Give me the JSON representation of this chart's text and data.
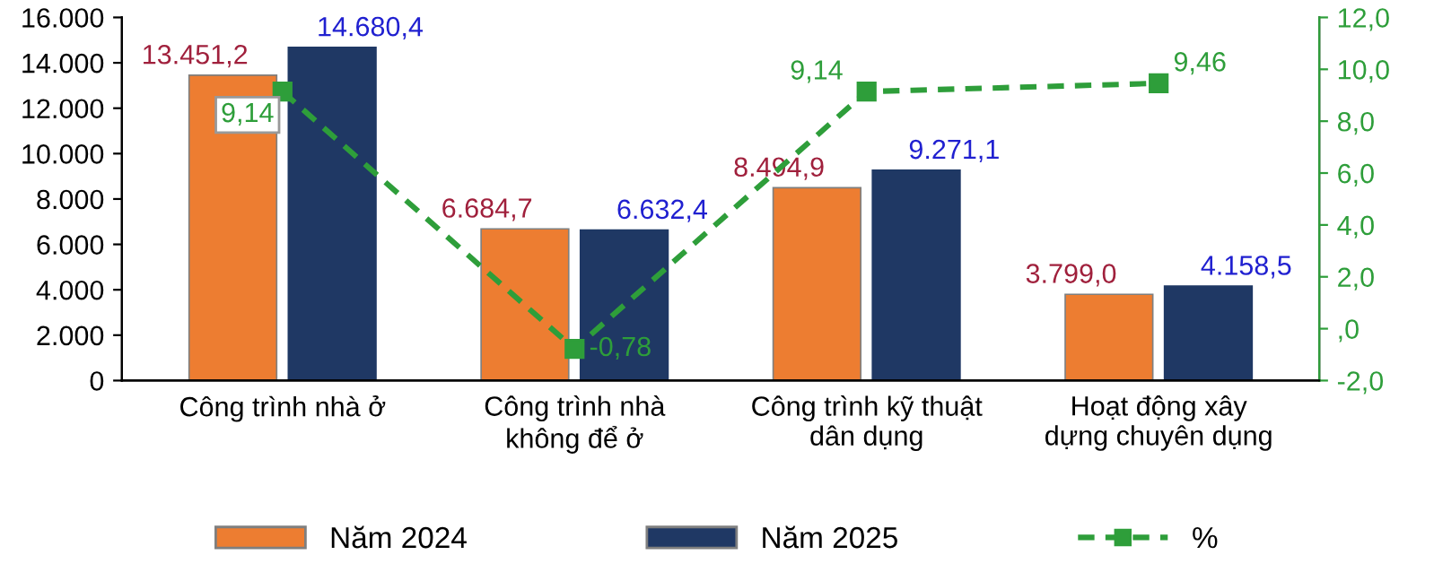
{
  "chart_data": {
    "type": "bar",
    "categories": [
      "Công trình nhà ở",
      "Công trình nhà\nkhông để ở",
      "Công trình kỹ thuật\ndân dụng",
      "Hoạt động xây\ndựng chuyên dụng"
    ],
    "series": [
      {
        "name": "Năm 2024",
        "color": "#ed7d31",
        "values": [
          13451.2,
          6684.7,
          8494.9,
          3799.0
        ],
        "value_labels": [
          "13.451,2",
          "6.684,7",
          "8.494,9",
          "3.799,0"
        ]
      },
      {
        "name": "Năm 2025",
        "color": "#1f3864",
        "values": [
          14680.4,
          6632.4,
          9271.1,
          4158.5
        ],
        "value_labels": [
          "14.680,4",
          "6.632,4",
          "9.271,1",
          "4.158,5"
        ]
      },
      {
        "name": "%",
        "type": "line",
        "axis": "y2",
        "color": "#2e9e3a",
        "marker": "square",
        "line_style": "dashed",
        "values": [
          9.14,
          -0.78,
          9.14,
          9.46
        ],
        "value_labels": [
          "9,14",
          "-0,78",
          "9,14",
          "9,46"
        ]
      }
    ],
    "ylim": [
      0,
      16000
    ],
    "yticks": [
      0,
      {
        "value": 2000,
        "label": "2.000"
      },
      {
        "value": 4000,
        "label": "4.000"
      },
      {
        "value": 6000,
        "label": "6.000"
      },
      {
        "value": 8000,
        "label": "8.000"
      },
      {
        "value": 10000,
        "label": "10.000"
      },
      {
        "value": 12000,
        "label": "12.000"
      },
      {
        "value": 14000,
        "label": "14.000"
      },
      {
        "value": 16000,
        "label": "16.000"
      }
    ],
    "y2lim": [
      -2,
      12
    ],
    "y2ticks": [
      {
        "value": -2,
        "label": "-2,0"
      },
      {
        "value": 0,
        "label": ",0"
      },
      {
        "value": 2,
        "label": "2,0"
      },
      {
        "value": 4,
        "label": "4,0"
      },
      {
        "value": 6,
        "label": "6,0"
      },
      {
        "value": 8,
        "label": "8,0"
      },
      {
        "value": 10,
        "label": "10,0"
      },
      {
        "value": 12,
        "label": "12,0"
      }
    ],
    "grid": false,
    "legend": "bottom"
  }
}
